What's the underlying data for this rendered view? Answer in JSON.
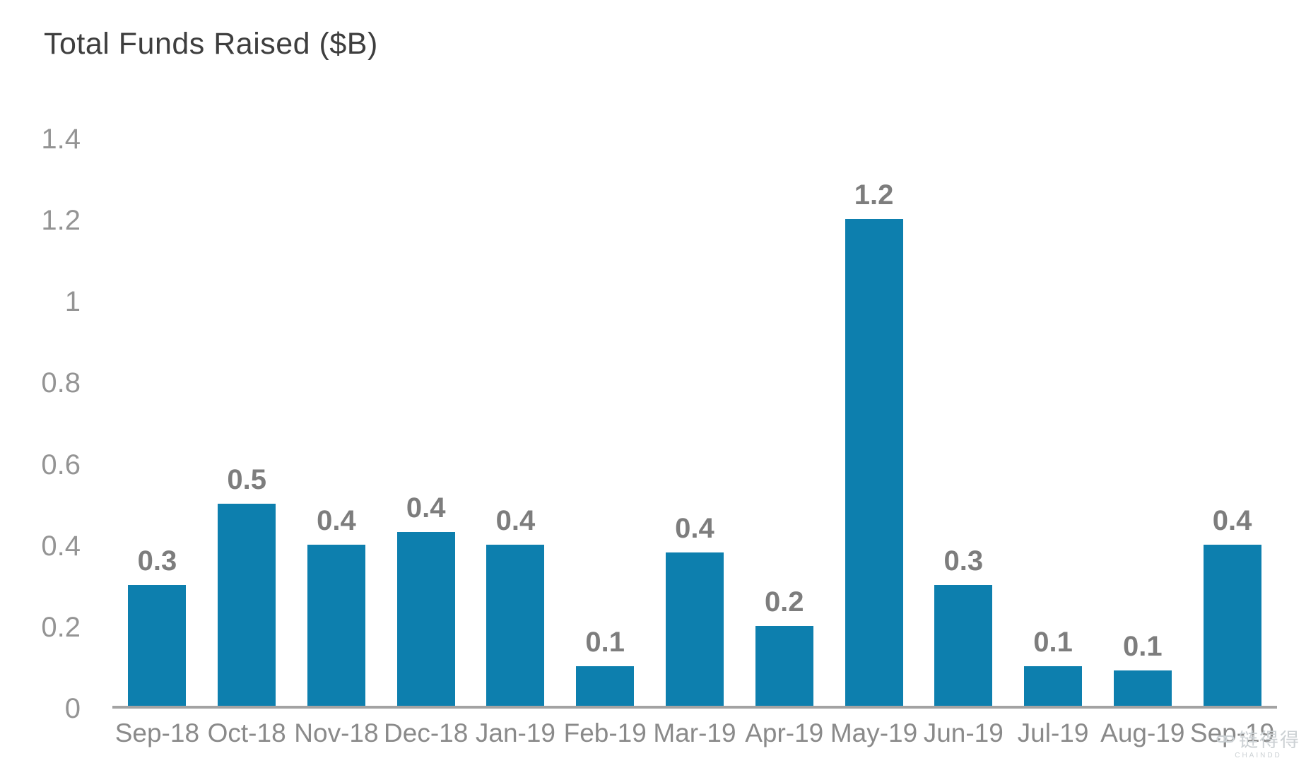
{
  "chart_data": {
    "type": "bar",
    "title": "Total Funds Raised ($B)",
    "categories": [
      "Sep-18",
      "Oct-18",
      "Nov-18",
      "Dec-18",
      "Jan-19",
      "Feb-19",
      "Mar-19",
      "Apr-19",
      "May-19",
      "Jun-19",
      "Jul-19",
      "Aug-19",
      "Sep-19"
    ],
    "values": [
      0.3,
      0.5,
      0.4,
      0.43,
      0.4,
      0.1,
      0.38,
      0.2,
      1.2,
      0.3,
      0.1,
      0.09,
      0.4
    ],
    "bar_labels": [
      "0.3",
      "0.5",
      "0.4",
      "0.4",
      "0.4",
      "0.1",
      "0.4",
      "0.2",
      "1.2",
      "0.3",
      "0.1",
      "0.1",
      "0.4"
    ],
    "xlabel": "",
    "ylabel": "",
    "ylim": [
      0,
      1.4
    ],
    "y_ticks": [
      0,
      0.2,
      0.4,
      0.6,
      0.8,
      1,
      1.2,
      1.4
    ],
    "y_tick_labels": [
      "0",
      "0.2",
      "0.4",
      "0.6",
      "0.8",
      "1",
      "1.2",
      "1.4"
    ],
    "grid": false,
    "legend": false,
    "bar_color": "#0d7fae"
  },
  "colors": {
    "title": "#3e3e3e",
    "bar": "#0d7fae",
    "axis_line": "#a3a3a3",
    "y_tick_label": "#949494",
    "x_tick_label": "#8a8a8a",
    "data_label": "#7d7d7d",
    "watermark": "#ccd1d4"
  },
  "watermark": {
    "icon": "chain-link-icon",
    "text": "链得得",
    "subtext": "CHAINDD"
  }
}
